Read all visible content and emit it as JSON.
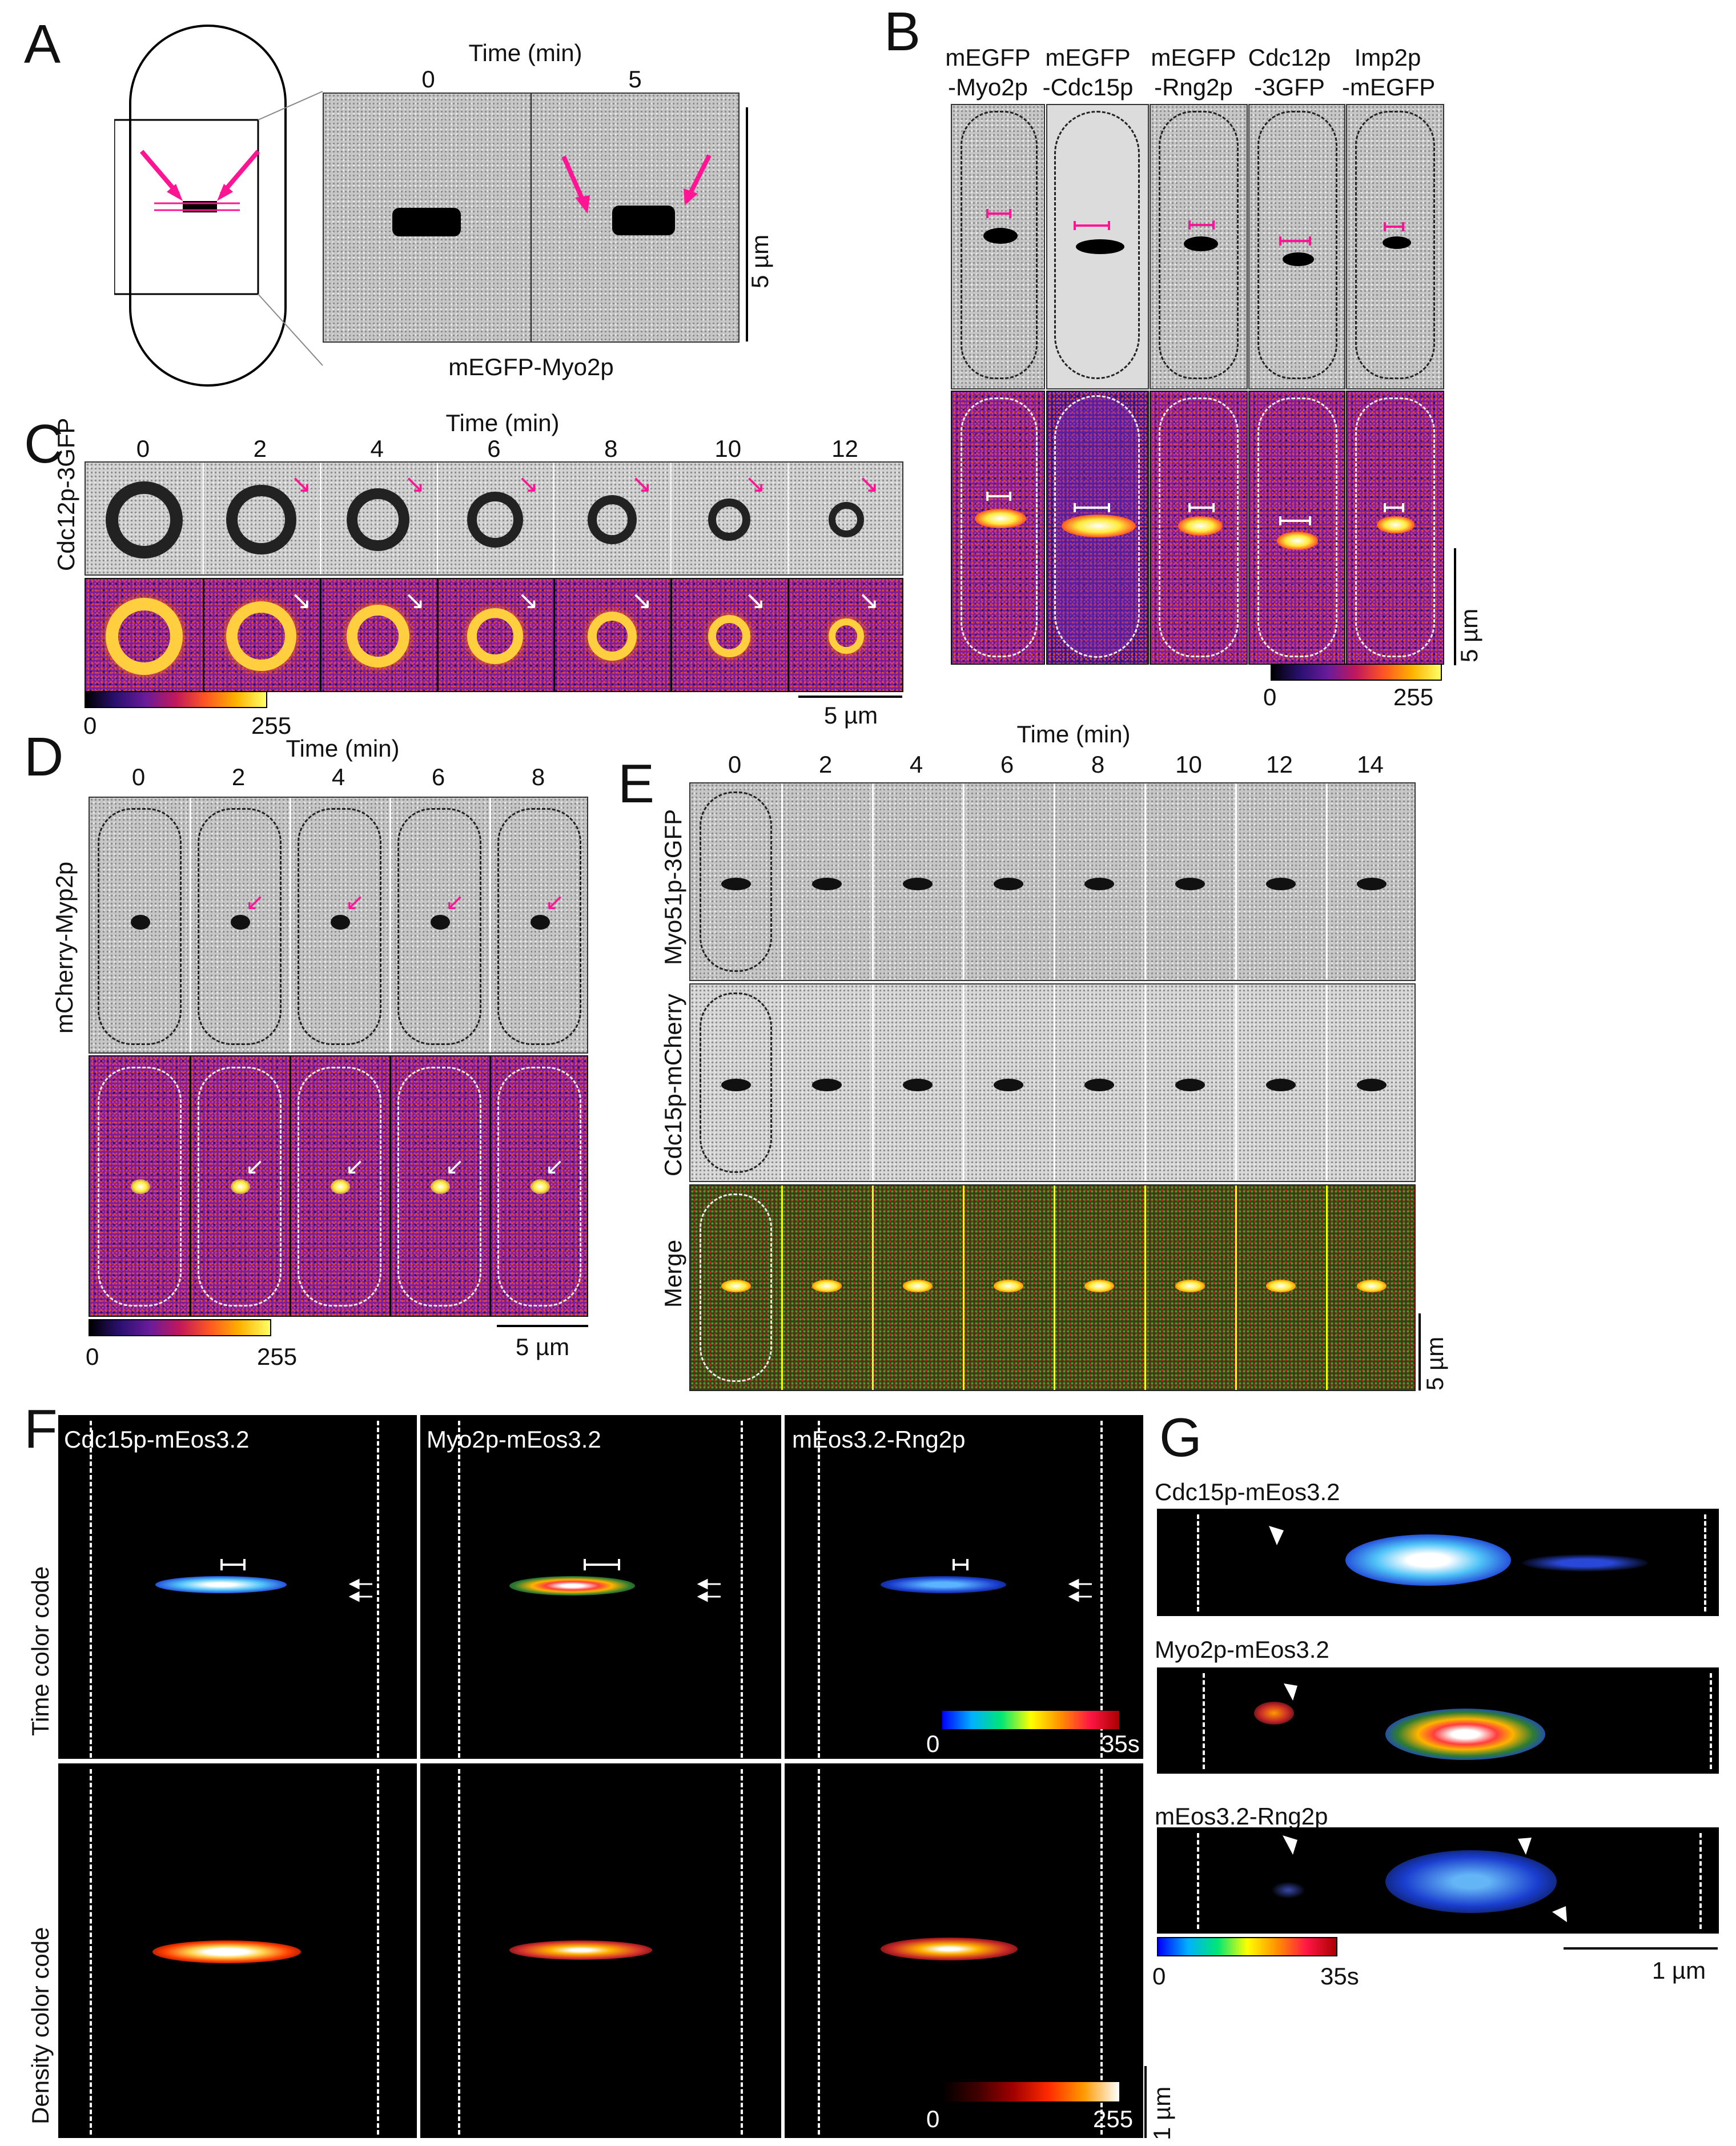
{
  "panels": {
    "A": {
      "label": "A",
      "time_header": "Time (min)",
      "times": [
        "0",
        "5"
      ],
      "protein": "mEGFP-Myo2p",
      "scale": "5 µm"
    },
    "B": {
      "label": "B",
      "columns": [
        {
          "line1": "mEGFP",
          "line2": "-Myo2p"
        },
        {
          "line1": "mEGFP",
          "line2": "-Cdc15p"
        },
        {
          "line1": "mEGFP",
          "line2": "-Rng2p"
        },
        {
          "line1": "Cdc12p",
          "line2": "-3GFP"
        },
        {
          "line1": "Imp2p",
          "line2": "-mEGFP"
        }
      ],
      "scale": "5 µm",
      "colorbar_min": "0",
      "colorbar_max": "255"
    },
    "C": {
      "label": "C",
      "time_header": "Time (min)",
      "times": [
        "0",
        "2",
        "4",
        "6",
        "8",
        "10",
        "12"
      ],
      "row_label": "Cdc12p-3GFP",
      "colorbar_min": "0",
      "colorbar_max": "255",
      "scale": "5 µm"
    },
    "D": {
      "label": "D",
      "time_header": "Time (min)",
      "times": [
        "0",
        "2",
        "4",
        "6",
        "8"
      ],
      "row_label": "mCherry-Myp2p",
      "colorbar_min": "0",
      "colorbar_max": "255",
      "scale": "5 µm"
    },
    "E": {
      "label": "E",
      "time_header": "Time (min)",
      "times": [
        "0",
        "2",
        "4",
        "6",
        "8",
        "10",
        "12",
        "14"
      ],
      "rows": [
        "Myo51p-3GFP",
        "Cdc15p-mCherry",
        "Merge"
      ],
      "scale": "5 µm"
    },
    "F": {
      "label": "F",
      "columns": [
        "Cdc15p-mEos3.2",
        "Myo2p-mEos3.2",
        "mEos3.2-Rng2p"
      ],
      "rows": [
        "Time color code",
        "Density color code"
      ],
      "time_min": "0",
      "time_max": "35s",
      "density_min": "0",
      "density_max": "255",
      "scale": "1 µm"
    },
    "G": {
      "label": "G",
      "rows": [
        "Cdc15p-mEos3.2",
        "Myo2p-mEos3.2",
        "mEos3.2-Rng2p"
      ],
      "time_min": "0",
      "time_max": "35s",
      "scale": "1 µm"
    }
  },
  "colors": {
    "magenta_arrow": "#ff1493",
    "white_arrow": "#ffffff",
    "merge_divider": "#ffff00"
  }
}
